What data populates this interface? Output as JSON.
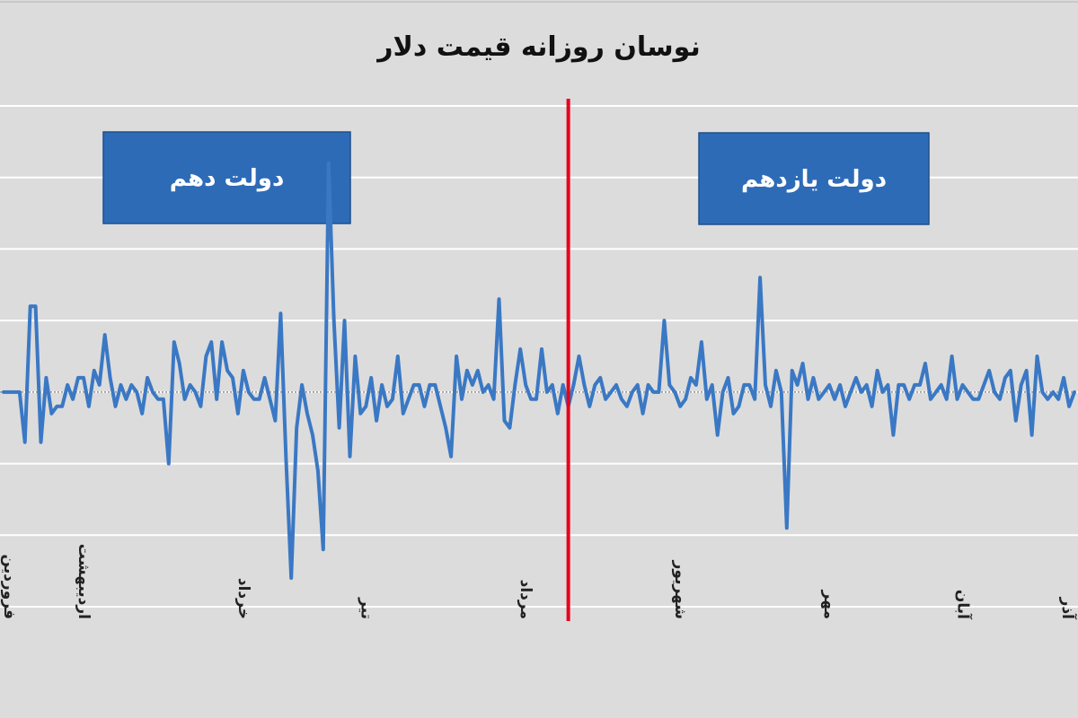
{
  "chart_data": {
    "type": "line",
    "title": "نوسان روزانه قیمت دلار",
    "xlabel": "",
    "ylabel": "",
    "ylim": [
      -3,
      4
    ],
    "grid": true,
    "legend": "none",
    "colors": {
      "background": "#dcdcdc",
      "line": "#3a78c4",
      "divider": "#e8001c",
      "annotation_box": "#2e6bb7",
      "gridline": "#ffffff",
      "zero_line": "#8c8c8c"
    },
    "x_tick_labels": [
      {
        "label": "فروردین",
        "index": 0
      },
      {
        "label": "اردیبهشت",
        "index": 15
      },
      {
        "label": "خرداد",
        "index": 45
      },
      {
        "label": "تیر",
        "index": 68
      },
      {
        "label": "مرداد",
        "index": 98
      },
      {
        "label": "شهریور",
        "index": 127
      },
      {
        "label": "مهر",
        "index": 155
      },
      {
        "label": "آبان",
        "index": 180
      },
      {
        "label": "آذر",
        "index": 205
      }
    ],
    "divider_index": 106,
    "annotations": [
      {
        "text": "دولت دهم",
        "position": "left"
      },
      {
        "text": "دولت یازدهم",
        "position": "right"
      }
    ],
    "series": [
      {
        "values": [
          0,
          0,
          0,
          0,
          -0.7,
          1.2,
          1.2,
          -0.7,
          0.2,
          -0.3,
          -0.2,
          -0.2,
          0.1,
          -0.1,
          0.2,
          0.2,
          -0.2,
          0.3,
          0.1,
          0.8,
          0.2,
          -0.2,
          0.1,
          -0.1,
          0.1,
          0,
          -0.3,
          0.2,
          0,
          -0.1,
          -0.1,
          -1,
          0.7,
          0.4,
          -0.1,
          0.1,
          0,
          -0.2,
          0.5,
          0.7,
          -0.1,
          0.7,
          0.3,
          0.2,
          -0.3,
          0.3,
          0,
          -0.1,
          -0.1,
          0.2,
          -0.1,
          -0.4,
          1.1,
          -0.9,
          -2.6,
          -0.5,
          0.1,
          -0.3,
          -0.6,
          -1.1,
          -2.2,
          3.2,
          1,
          -0.5,
          1,
          -0.9,
          0.5,
          -0.3,
          -0.2,
          0.2,
          -0.4,
          0.1,
          -0.2,
          -0.1,
          0.5,
          -0.3,
          -0.1,
          0.1,
          0.1,
          -0.2,
          0.1,
          0.1,
          -0.2,
          -0.5,
          -0.9,
          0.5,
          -0.1,
          0.3,
          0.1,
          0.3,
          0,
          0.1,
          -0.1,
          1.3,
          -0.4,
          -0.5,
          0.1,
          0.6,
          0.1,
          -0.1,
          -0.1,
          0.6,
          0,
          0.1,
          -0.3,
          0.1,
          -0.2,
          0.1,
          0.5,
          0.1,
          -0.2,
          0.1,
          0.2,
          -0.1,
          0,
          0.1,
          -0.1,
          -0.2,
          0,
          0.1,
          -0.3,
          0.1,
          0,
          0,
          1,
          0.1,
          0,
          -0.2,
          -0.1,
          0.2,
          0.1,
          0.7,
          -0.1,
          0.1,
          -0.6,
          0,
          0.2,
          -0.3,
          -0.2,
          0.1,
          0.1,
          -0.1,
          1.6,
          0.1,
          -0.2,
          0.3,
          0,
          -1.9,
          0.3,
          0.1,
          0.4,
          -0.1,
          0.2,
          -0.1,
          0,
          0.1,
          -0.1,
          0.1,
          -0.2,
          0,
          0.2,
          0,
          0.1,
          -0.2,
          0.3,
          0,
          0.1,
          -0.6,
          0.1,
          0.1,
          -0.1,
          0.1,
          0.1,
          0.4,
          -0.1,
          0,
          0.1,
          -0.1,
          0.5,
          -0.1,
          0.1,
          0,
          -0.1,
          -0.1,
          0.1,
          0.3,
          0,
          -0.1,
          0.2,
          0.3,
          -0.4,
          0.1,
          0.3,
          -0.6,
          0.5,
          0,
          -0.1,
          0,
          -0.1,
          0.2,
          -0.2,
          0
        ]
      }
    ]
  }
}
